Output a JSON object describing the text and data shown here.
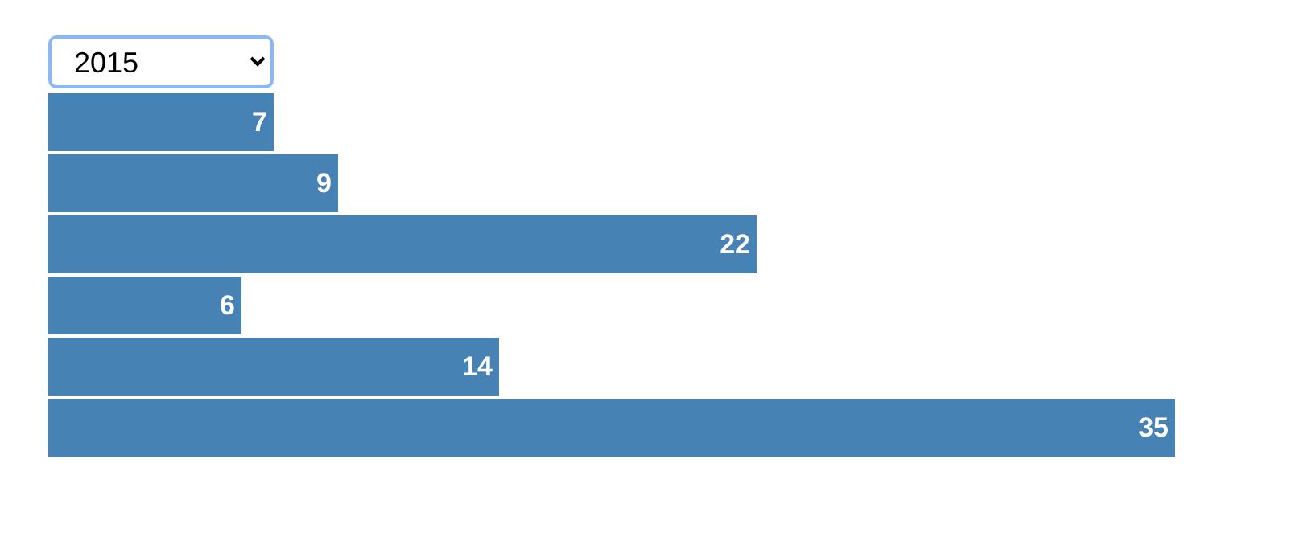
{
  "chart_data": {
    "type": "bar",
    "orientation": "horizontal",
    "annotations": [
      "2015"
    ],
    "categories": [
      null,
      null,
      null,
      null,
      null,
      null
    ],
    "values": [
      7,
      9,
      22,
      6,
      14,
      35
    ],
    "color": "#4682b4",
    "xlim": [
      0,
      35
    ],
    "tick_labels": false,
    "legend": false,
    "data_labels": true
  }
}
